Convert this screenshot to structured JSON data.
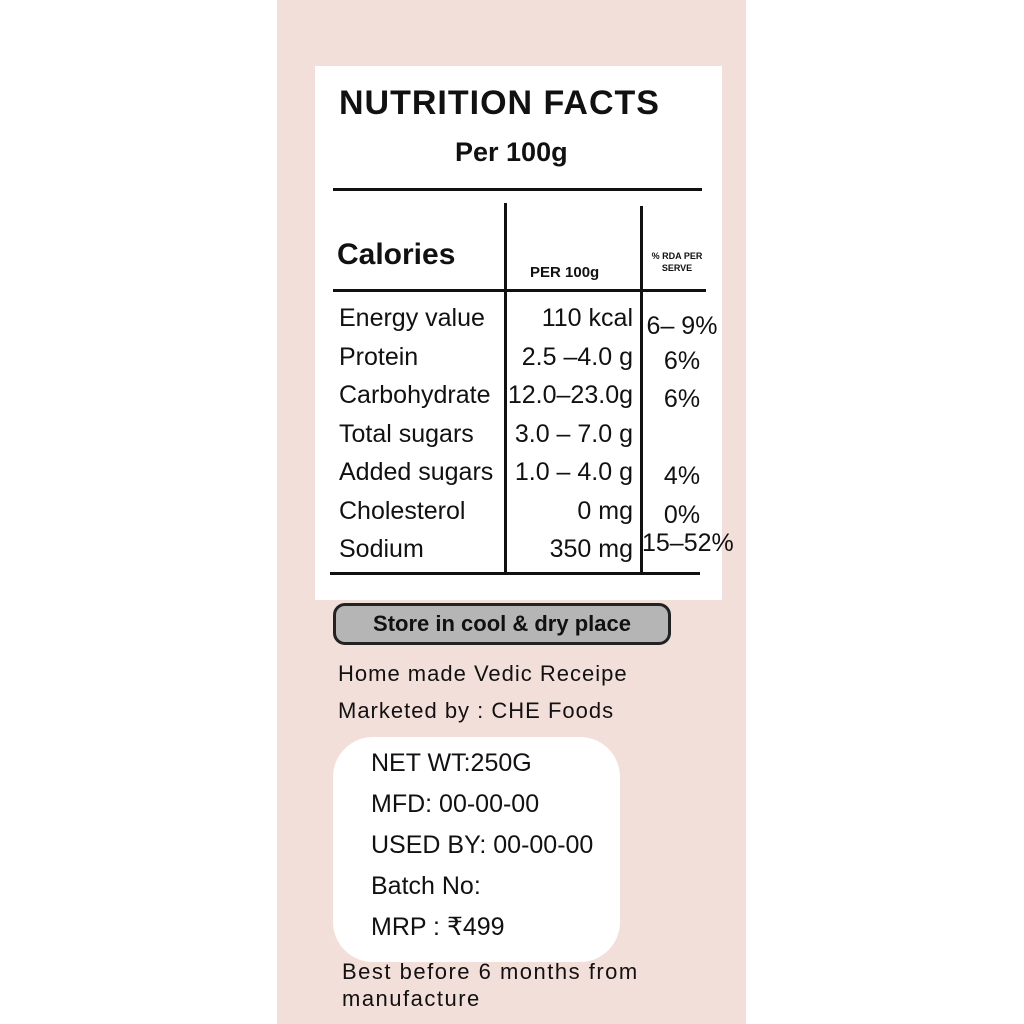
{
  "nutrition": {
    "title": "NUTRITION FACTS",
    "subtitle": "Per 100g",
    "columns": [
      "Calories",
      "PER 100g",
      "% RDA PER SERVE"
    ],
    "rows": [
      [
        "Energy value",
        "110 kcal",
        "6– 9%"
      ],
      [
        "Protein",
        "2.5 –4.0 g",
        "6%"
      ],
      [
        "Carbohydrate",
        "12.0–23.0g",
        "6%"
      ],
      [
        "Total sugars",
        "3.0 – 7.0 g"
      ],
      [
        "Added sugars",
        "1.0 – 4.0 g",
        "4%"
      ],
      [
        "Cholesterol",
        "0 mg",
        "0%"
      ],
      [
        "Sodium",
        "350 mg",
        "15–52%"
      ]
    ]
  },
  "storage": "Store in cool & dry place",
  "info": [
    "Home made Vedic Receipe",
    "Marketed by : CHE Foods"
  ],
  "details": [
    "NET WT:250G",
    "MFD: 00-00-00",
    "USED BY: 00-00-00",
    "Batch No:",
    "MRP :  ₹499"
  ],
  "footer": "Best before 6 months from manufacture"
}
